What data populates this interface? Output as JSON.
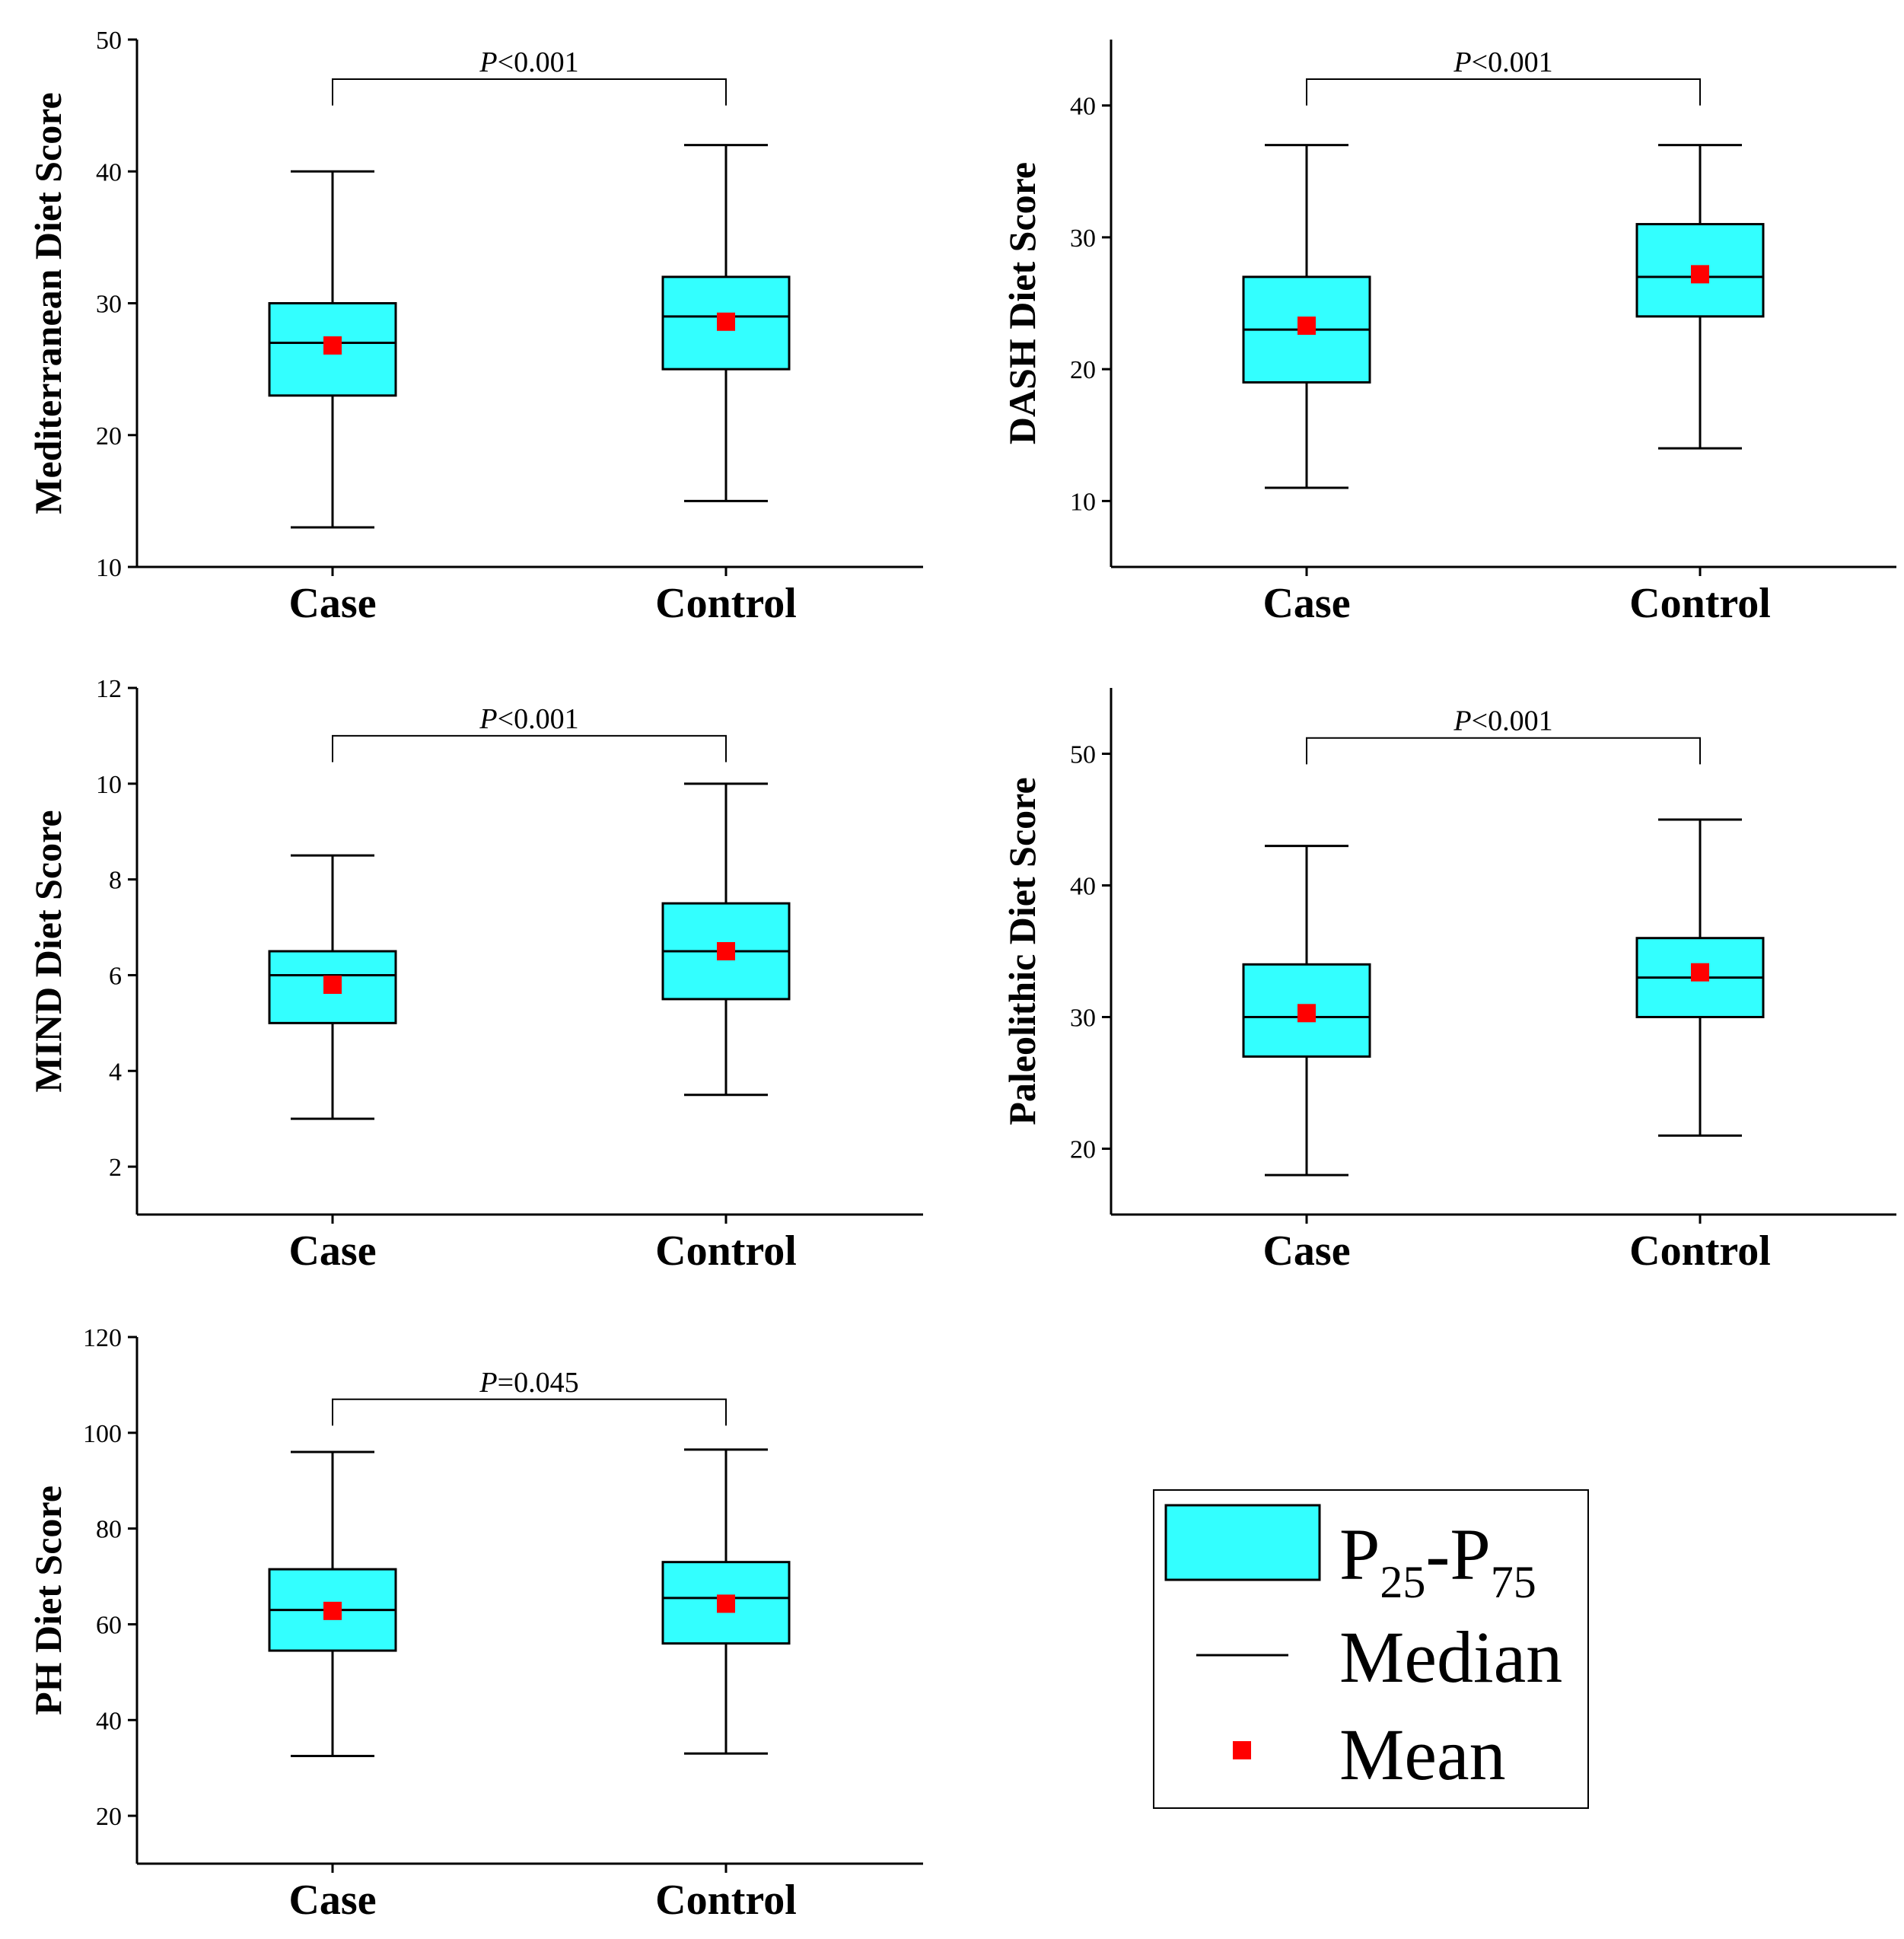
{
  "colors": {
    "box_fill": "#33ffff",
    "mean_marker": "#ff0000",
    "line": "#000000"
  },
  "legend": {
    "box_label_main": "P",
    "box_label_sub1": "25",
    "box_label_dash": "-P",
    "box_label_sub2": "75",
    "median_label": "Median",
    "mean_label": "Mean"
  },
  "chart_data": [
    {
      "type": "box",
      "ylabel": "Mediterranean Diet Score",
      "ylim": [
        10,
        50
      ],
      "yticks": [
        10,
        20,
        30,
        40,
        50
      ],
      "categories": [
        "Case",
        "Control"
      ],
      "boxes": [
        {
          "min": 13,
          "q1": 23,
          "median": 27,
          "q3": 30,
          "max": 40,
          "mean": 26.8
        },
        {
          "min": 15,
          "q1": 25,
          "median": 29,
          "q3": 32,
          "max": 42,
          "mean": 28.6
        }
      ],
      "bracket_y": 47,
      "bracket_drop": 2,
      "p_italic": "P",
      "p_rest": "<0.001"
    },
    {
      "type": "box",
      "ylabel": "DASH Diet Score",
      "ylim": [
        5,
        45
      ],
      "yticks": [
        10,
        20,
        30,
        40
      ],
      "categories": [
        "Case",
        "Control"
      ],
      "boxes": [
        {
          "min": 11,
          "q1": 19,
          "median": 23,
          "q3": 27,
          "max": 37,
          "mean": 23.3
        },
        {
          "min": 14,
          "q1": 24,
          "median": 27,
          "q3": 31,
          "max": 37,
          "mean": 27.2
        }
      ],
      "bracket_y": 42,
      "bracket_drop": 2,
      "p_italic": "P",
      "p_rest": "<0.001"
    },
    {
      "type": "box",
      "ylabel": "MIND Diet Score",
      "ylim": [
        1,
        12
      ],
      "yticks": [
        2,
        4,
        6,
        8,
        10,
        12
      ],
      "categories": [
        "Case",
        "Control"
      ],
      "boxes": [
        {
          "min": 3,
          "q1": 5,
          "median": 6,
          "q3": 6.5,
          "max": 8.5,
          "mean": 5.8
        },
        {
          "min": 3.5,
          "q1": 5.5,
          "median": 6.5,
          "q3": 7.5,
          "max": 10,
          "mean": 6.5
        }
      ],
      "bracket_y": 11,
      "bracket_drop": 0.55,
      "p_italic": "P",
      "p_rest": "<0.001"
    },
    {
      "type": "box",
      "ylabel": "Paleolithic Diet Score",
      "ylim": [
        15,
        55
      ],
      "yticks": [
        20,
        30,
        40,
        50
      ],
      "categories": [
        "Case",
        "Control"
      ],
      "boxes": [
        {
          "min": 18,
          "q1": 27,
          "median": 30,
          "q3": 34,
          "max": 43,
          "mean": 30.3
        },
        {
          "min": 21,
          "q1": 30,
          "median": 33,
          "q3": 36,
          "max": 45,
          "mean": 33.4
        }
      ],
      "bracket_y": 51.2,
      "bracket_drop": 2,
      "p_italic": "P",
      "p_rest": "<0.001"
    },
    {
      "type": "box",
      "ylabel": "PH Diet Score",
      "ylim": [
        10,
        120
      ],
      "yticks": [
        20,
        40,
        60,
        80,
        100,
        120
      ],
      "categories": [
        "Case",
        "Control"
      ],
      "boxes": [
        {
          "min": 32.5,
          "q1": 54.5,
          "median": 63,
          "q3": 71.5,
          "max": 96,
          "mean": 62.8
        },
        {
          "min": 33,
          "q1": 56,
          "median": 65.5,
          "q3": 73,
          "max": 96.5,
          "mean": 64.3
        }
      ],
      "bracket_y": 107,
      "bracket_drop": 5.5,
      "p_italic": "P",
      "p_rest": "=0.045"
    }
  ]
}
